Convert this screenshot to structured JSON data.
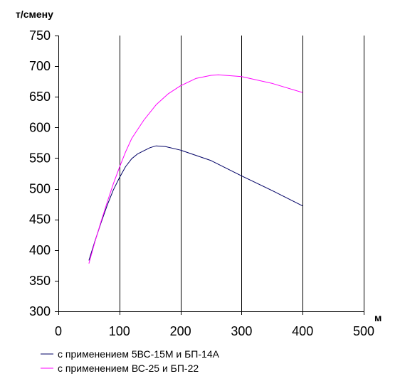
{
  "chart_data": {
    "type": "line",
    "title": "",
    "ylabel": "т/смену",
    "xlabel": "м",
    "xlim": [
      0,
      500
    ],
    "ylim": [
      300,
      750
    ],
    "x_ticks": [
      0,
      100,
      200,
      300,
      400,
      500
    ],
    "y_ticks": [
      300,
      350,
      400,
      450,
      500,
      550,
      600,
      650,
      700,
      750
    ],
    "grid": "vertical",
    "legend_position": "bottom",
    "series": [
      {
        "name": "с применением 5ВС-15М и БП-14А",
        "color": "#000066",
        "points": [
          {
            "x": 50,
            "y": 383
          },
          {
            "x": 60,
            "y": 415
          },
          {
            "x": 70,
            "y": 445
          },
          {
            "x": 80,
            "y": 473
          },
          {
            "x": 90,
            "y": 498
          },
          {
            "x": 100,
            "y": 518
          },
          {
            "x": 110,
            "y": 536
          },
          {
            "x": 120,
            "y": 549
          },
          {
            "x": 130,
            "y": 557
          },
          {
            "x": 140,
            "y": 562
          },
          {
            "x": 150,
            "y": 567
          },
          {
            "x": 160,
            "y": 570
          },
          {
            "x": 175,
            "y": 569
          },
          {
            "x": 200,
            "y": 563
          },
          {
            "x": 250,
            "y": 546
          },
          {
            "x": 300,
            "y": 521
          },
          {
            "x": 350,
            "y": 497
          },
          {
            "x": 400,
            "y": 472
          }
        ]
      },
      {
        "name": "с применением ВС-25 и БП-22",
        "color": "#ff00ff",
        "points": [
          {
            "x": 50,
            "y": 378
          },
          {
            "x": 60,
            "y": 414
          },
          {
            "x": 70,
            "y": 447
          },
          {
            "x": 80,
            "y": 478
          },
          {
            "x": 90,
            "y": 508
          },
          {
            "x": 100,
            "y": 535
          },
          {
            "x": 110,
            "y": 560
          },
          {
            "x": 120,
            "y": 582
          },
          {
            "x": 140,
            "y": 612
          },
          {
            "x": 160,
            "y": 637
          },
          {
            "x": 180,
            "y": 655
          },
          {
            "x": 200,
            "y": 668
          },
          {
            "x": 225,
            "y": 680
          },
          {
            "x": 250,
            "y": 685
          },
          {
            "x": 262,
            "y": 686
          },
          {
            "x": 300,
            "y": 683
          },
          {
            "x": 350,
            "y": 672
          },
          {
            "x": 400,
            "y": 657
          }
        ]
      }
    ]
  },
  "legend": {
    "items": [
      {
        "label": "с применением 5ВС-15М и БП-14А",
        "color": "#000066"
      },
      {
        "label": "с применением ВС-25 и БП-22",
        "color": "#ff00ff"
      }
    ]
  }
}
